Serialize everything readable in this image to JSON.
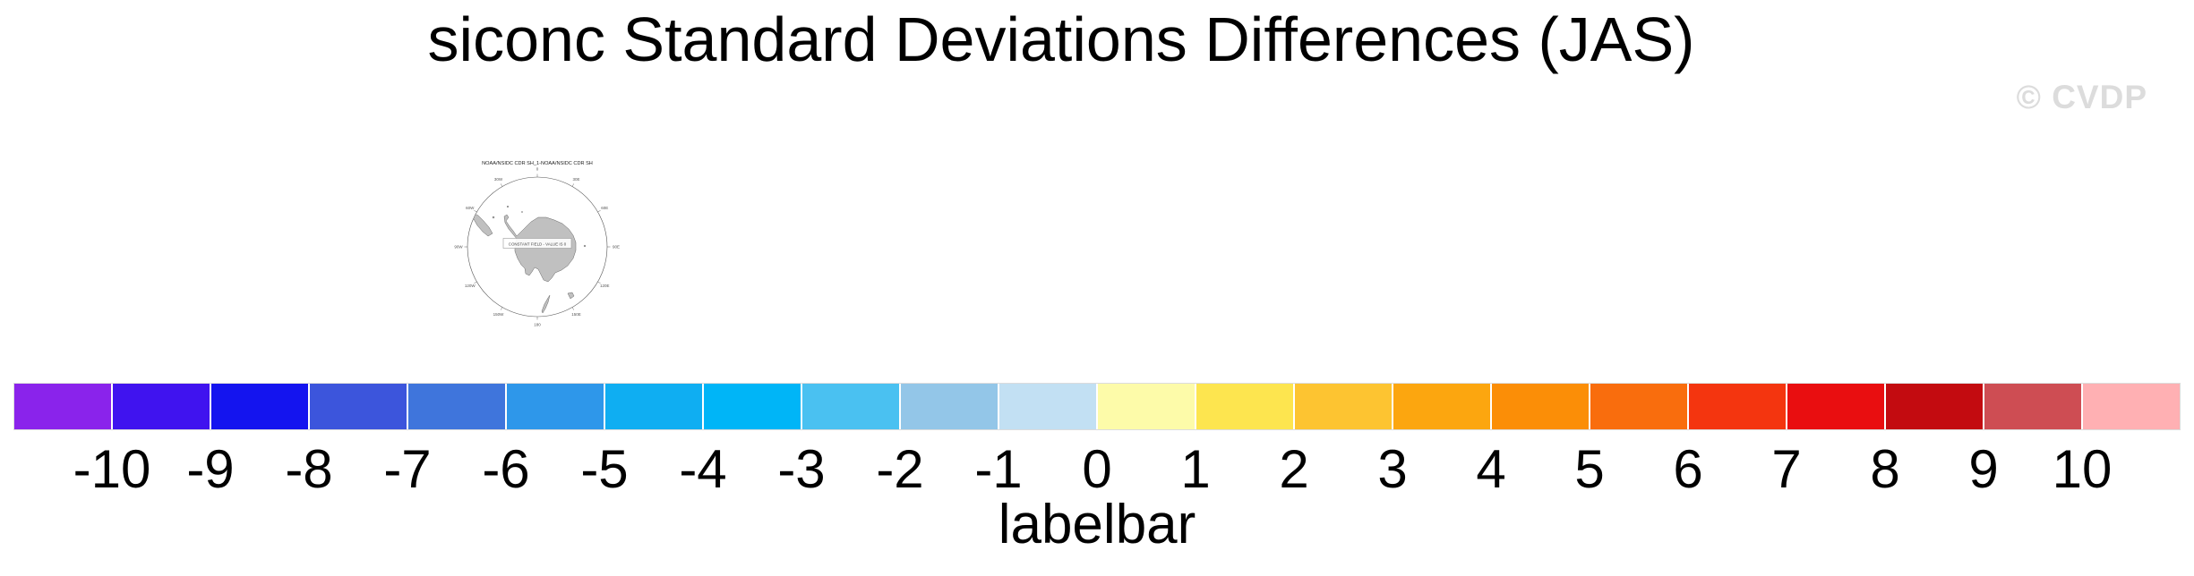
{
  "page": {
    "title": "siconc Standard Deviations Differences (JAS)",
    "watermark": "© CVDP"
  },
  "map_panel": {
    "title": "NOAA/NSIDC CDR SH_1-NOAA/NSIDC CDR SH",
    "overlay_text": "CONSTANT FIELD - VALUE IS 0",
    "lon_labels": [
      "0",
      "30E",
      "60E",
      "90E",
      "120E",
      "150E",
      "180",
      "150W",
      "120W",
      "90W",
      "60W",
      "30W"
    ]
  },
  "chart_data": {
    "type": "heatmap",
    "title": "siconc Standard Deviations Differences (JAS)",
    "subtitle": "NOAA/NSIDC CDR SH_1-NOAA/NSIDC CDR SH",
    "projection": "south polar stereographic",
    "season": "JAS",
    "field_note": "CONSTANT FIELD - VALUE IS 0",
    "colorbar": {
      "label": "labelbar",
      "orientation": "horizontal",
      "tick_values": [
        -10,
        -9,
        -8,
        -7,
        -6,
        -5,
        -4,
        -3,
        -2,
        -1,
        0,
        1,
        2,
        3,
        4,
        5,
        6,
        7,
        8,
        9,
        10
      ],
      "tick_labels": [
        "-10",
        "-9",
        "-8",
        "-7",
        "-6",
        "-5",
        "-4",
        "-3",
        "-2",
        "-1",
        "0",
        "1",
        "2",
        "3",
        "4",
        "5",
        "6",
        "7",
        "8",
        "9",
        "10"
      ],
      "colors": [
        "#8a23eb",
        "#4013ef",
        "#1414ef",
        "#3c55dc",
        "#3f75dc",
        "#2e97ea",
        "#0faef2",
        "#00b5f7",
        "#4ac1f1",
        "#93c6e8",
        "#c2e0f3",
        "#fdfba9",
        "#fde54f",
        "#fdc431",
        "#fca60f",
        "#fb8e07",
        "#f96d0d",
        "#f4350f",
        "#e90e10",
        "#c30b10",
        "#ce4d53",
        "#ffb0b3"
      ],
      "land_color": "#c0c0c0"
    }
  }
}
